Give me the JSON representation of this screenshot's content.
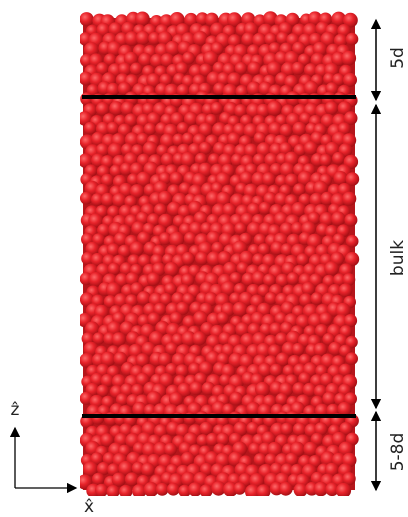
{
  "annotations": {
    "top": "5d",
    "middle": "bulk",
    "bottom": "5-8d"
  },
  "axes": {
    "z": "ẑ",
    "x": "x̂"
  }
}
